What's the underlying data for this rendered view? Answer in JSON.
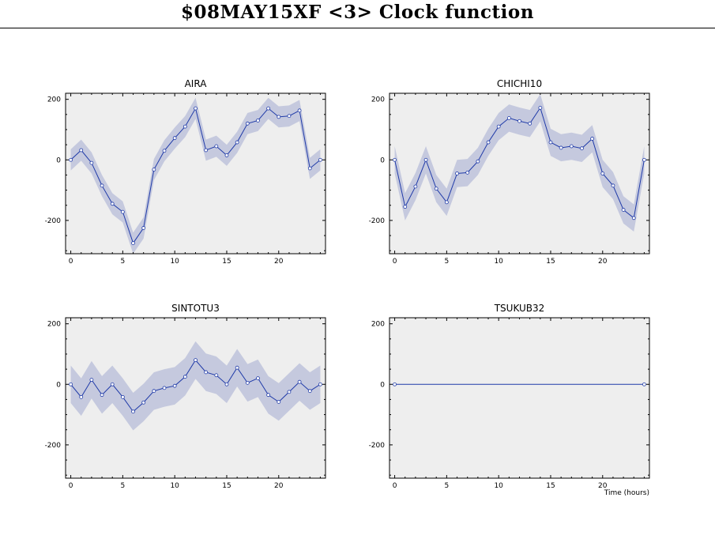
{
  "title": "$08MAY15XF <3>  Clock function",
  "colors": {
    "plot_bg": "#eeeeee",
    "band": "#c5c9de",
    "line": "#1f3aa8",
    "axis": "#000000"
  },
  "chart_data": [
    {
      "type": "line",
      "title": "AIRA",
      "xlim": [
        -0.5,
        24.5
      ],
      "ylim": [
        -310,
        220
      ],
      "xticks": [
        0,
        5,
        10,
        15,
        20
      ],
      "yticks": [
        -200,
        0,
        200
      ],
      "x": [
        0,
        1,
        2,
        3,
        4,
        5,
        6,
        7,
        8,
        9,
        10,
        11,
        12,
        13,
        14,
        15,
        16,
        17,
        18,
        19,
        20,
        21,
        22,
        23,
        24
      ],
      "y": [
        0,
        32,
        -10,
        -85,
        -145,
        -172,
        -275,
        -225,
        -32,
        30,
        72,
        110,
        170,
        32,
        45,
        15,
        58,
        120,
        130,
        170,
        142,
        145,
        163,
        -28,
        0
      ],
      "band": 35,
      "xlabel": ""
    },
    {
      "type": "line",
      "title": "CHICHI10",
      "xlim": [
        -0.5,
        24.5
      ],
      "ylim": [
        -310,
        220
      ],
      "xticks": [
        0,
        5,
        10,
        15,
        20
      ],
      "yticks": [
        -200,
        0,
        200
      ],
      "x": [
        0,
        1,
        2,
        3,
        4,
        5,
        6,
        7,
        8,
        9,
        10,
        11,
        12,
        13,
        14,
        15,
        16,
        17,
        18,
        19,
        20,
        21,
        22,
        23,
        24
      ],
      "y": [
        0,
        -155,
        -88,
        0,
        -95,
        -140,
        -45,
        -42,
        -5,
        58,
        110,
        138,
        128,
        120,
        172,
        58,
        40,
        45,
        38,
        70,
        -45,
        -85,
        -165,
        -192,
        0
      ],
      "band": 45,
      "xlabel": ""
    },
    {
      "type": "line",
      "title": "SINTOTU3",
      "xlim": [
        -0.5,
        24.5
      ],
      "ylim": [
        -310,
        220
      ],
      "xticks": [
        0,
        5,
        10,
        15,
        20
      ],
      "yticks": [
        -200,
        0,
        200
      ],
      "x": [
        0,
        1,
        2,
        3,
        4,
        5,
        6,
        7,
        8,
        9,
        10,
        11,
        12,
        13,
        14,
        15,
        16,
        17,
        18,
        19,
        20,
        21,
        22,
        23,
        24
      ],
      "y": [
        0,
        -42,
        15,
        -35,
        0,
        -42,
        -90,
        -60,
        -22,
        -12,
        -5,
        25,
        80,
        40,
        30,
        0,
        55,
        5,
        20,
        -35,
        -58,
        -25,
        8,
        -22,
        0
      ],
      "band": 62,
      "xlabel": ""
    },
    {
      "type": "line",
      "title": "TSUKUB32",
      "xlim": [
        -0.5,
        24.5
      ],
      "ylim": [
        -310,
        220
      ],
      "xticks": [
        0,
        5,
        10,
        15,
        20
      ],
      "yticks": [
        -200,
        0,
        200
      ],
      "x": [
        0,
        24
      ],
      "y": [
        0,
        0
      ],
      "band": 0,
      "xlabel": "Time (hours)"
    }
  ]
}
